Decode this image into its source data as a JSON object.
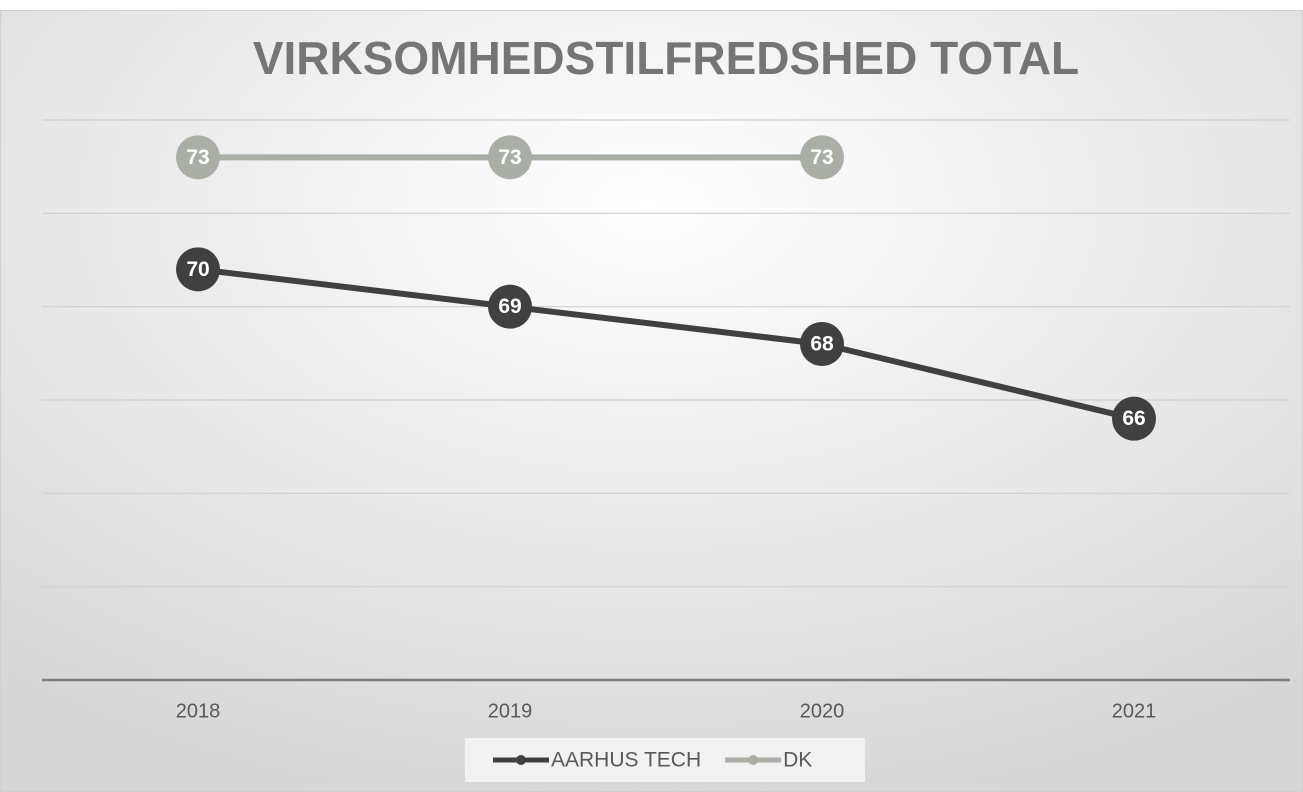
{
  "chart_data": {
    "type": "line",
    "title": "VIRKSOMHEDSTILFREDSHED TOTAL",
    "categories": [
      "2018",
      "2019",
      "2020",
      "2021"
    ],
    "series": [
      {
        "name": "AARHUS TECH",
        "color": "#404040",
        "values": [
          70,
          69,
          68,
          66
        ]
      },
      {
        "name": "DK",
        "color": "#a9afa5",
        "values": [
          73,
          73,
          73,
          null
        ]
      }
    ],
    "ylim": [
      59,
      74
    ],
    "yticks": [
      59,
      61.5,
      64,
      66.5,
      69,
      71.5,
      74
    ],
    "grid": true,
    "legend": "bottom"
  }
}
